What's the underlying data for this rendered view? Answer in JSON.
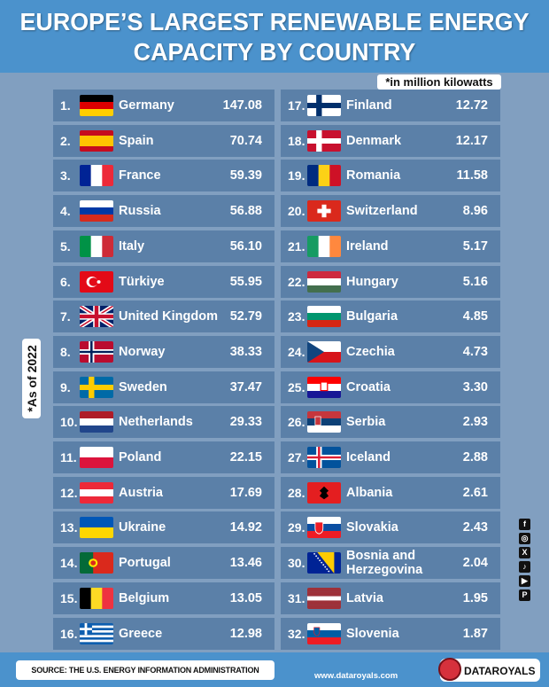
{
  "title_line1": "EUROPE’S LARGEST RENEWABLE ENERGY",
  "title_line2": "CAPACITY BY COUNTRY",
  "unit_note": "*in million kilowatts",
  "as_of": "*As of 2022",
  "source": "SOURCE: THE U.S. ENERGY INFORMATION ADMINISTRATION",
  "website": "www.dataroyals.com",
  "brand": "DATAROYALS",
  "social_icons": [
    "facebook-icon",
    "instagram-icon",
    "x-icon",
    "tiktok-icon",
    "youtube-icon",
    "pinterest-icon"
  ],
  "colors": {
    "header": "#4b92cc",
    "background": "#819fc0",
    "row": "#5b80a8"
  },
  "chart_data": {
    "type": "table",
    "title": "EUROPE’S LARGEST RENEWABLE ENERGY CAPACITY BY COUNTRY",
    "unit": "million kilowatts",
    "rows": [
      {
        "rank": "1.",
        "country": "Germany",
        "flag": "de",
        "value": "147.08"
      },
      {
        "rank": "2.",
        "country": "Spain",
        "flag": "es",
        "value": "70.74"
      },
      {
        "rank": "3.",
        "country": "France",
        "flag": "fr",
        "value": "59.39"
      },
      {
        "rank": "4.",
        "country": "Russia",
        "flag": "ru",
        "value": "56.88"
      },
      {
        "rank": "5.",
        "country": "Italy",
        "flag": "it",
        "value": "56.10"
      },
      {
        "rank": "6.",
        "country": "Türkiye",
        "flag": "tr",
        "value": "55.95"
      },
      {
        "rank": "7.",
        "country": "United Kingdom",
        "flag": "gb",
        "value": "52.79"
      },
      {
        "rank": "8.",
        "country": "Norway",
        "flag": "no",
        "value": "38.33"
      },
      {
        "rank": "9.",
        "country": "Sweden",
        "flag": "se",
        "value": "37.47"
      },
      {
        "rank": "10.",
        "country": "Netherlands",
        "flag": "nl",
        "value": "29.33"
      },
      {
        "rank": "11.",
        "country": "Poland",
        "flag": "pl",
        "value": "22.15"
      },
      {
        "rank": "12.",
        "country": "Austria",
        "flag": "at",
        "value": "17.69"
      },
      {
        "rank": "13.",
        "country": "Ukraine",
        "flag": "ua",
        "value": "14.92"
      },
      {
        "rank": "14.",
        "country": "Portugal",
        "flag": "pt",
        "value": "13.46"
      },
      {
        "rank": "15.",
        "country": "Belgium",
        "flag": "be",
        "value": "13.05"
      },
      {
        "rank": "16.",
        "country": "Greece",
        "flag": "gr",
        "value": "12.98"
      },
      {
        "rank": "17.",
        "country": "Finland",
        "flag": "fi",
        "value": "12.72"
      },
      {
        "rank": "18.",
        "country": "Denmark",
        "flag": "dk",
        "value": "12.17"
      },
      {
        "rank": "19.",
        "country": "Romania",
        "flag": "ro",
        "value": "11.58"
      },
      {
        "rank": "20.",
        "country": "Switzerland",
        "flag": "ch",
        "value": "8.96"
      },
      {
        "rank": "21.",
        "country": "Ireland",
        "flag": "ie",
        "value": "5.17"
      },
      {
        "rank": "22.",
        "country": "Hungary",
        "flag": "hu",
        "value": "5.16"
      },
      {
        "rank": "23.",
        "country": "Bulgaria",
        "flag": "bg",
        "value": "4.85"
      },
      {
        "rank": "24.",
        "country": "Czechia",
        "flag": "cz",
        "value": "4.73"
      },
      {
        "rank": "25.",
        "country": "Croatia",
        "flag": "hr",
        "value": "3.30"
      },
      {
        "rank": "26.",
        "country": "Serbia",
        "flag": "rs",
        "value": "2.93"
      },
      {
        "rank": "27.",
        "country": "Iceland",
        "flag": "is",
        "value": "2.88"
      },
      {
        "rank": "28.",
        "country": "Albania",
        "flag": "al",
        "value": "2.61"
      },
      {
        "rank": "29.",
        "country": "Slovakia",
        "flag": "sk",
        "value": "2.43"
      },
      {
        "rank": "30.",
        "country": "Bosnia and Herzegovina",
        "flag": "ba",
        "value": "2.04"
      },
      {
        "rank": "31.",
        "country": "Latvia",
        "flag": "lv",
        "value": "1.95"
      },
      {
        "rank": "32.",
        "country": "Slovenia",
        "flag": "si",
        "value": "1.87"
      }
    ]
  }
}
